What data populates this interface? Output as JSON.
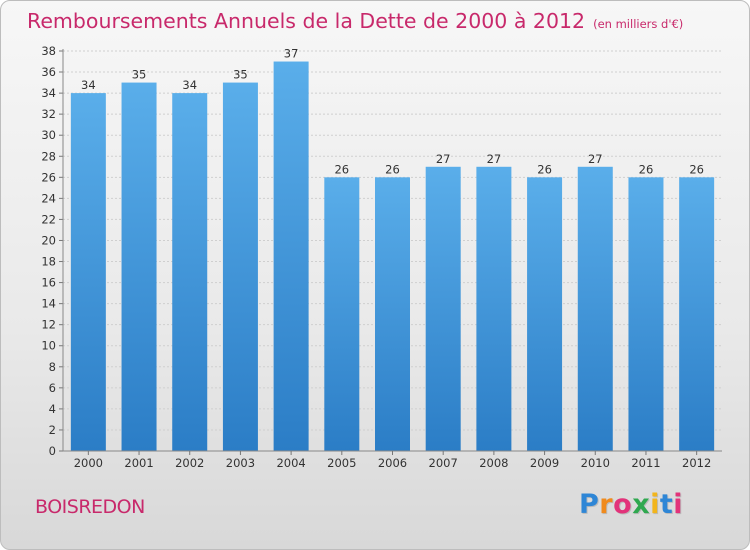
{
  "header": {
    "title": "Remboursements Annuels de la Dette de 2000 à 2012",
    "unit": "(en milliers d'€)"
  },
  "footer": {
    "commune": "BOISREDON",
    "brand": "Proxiti"
  },
  "colors": {
    "title": "#c8296b",
    "bar_top": "#5aaeea",
    "bar_bottom": "#2b7dc6"
  },
  "chart_data": {
    "type": "bar",
    "title": "Remboursements Annuels de la Dette de 2000 à 2012",
    "subtitle": "(en milliers d'€)",
    "xlabel": "",
    "ylabel": "",
    "categories": [
      "2000",
      "2001",
      "2002",
      "2003",
      "2004",
      "2005",
      "2006",
      "2007",
      "2008",
      "2009",
      "2010",
      "2011",
      "2012"
    ],
    "values": [
      34,
      35,
      34,
      35,
      37,
      26,
      26,
      27,
      27,
      26,
      27,
      26,
      26
    ],
    "ylim": [
      0,
      38
    ],
    "yticks": [
      0,
      2,
      4,
      6,
      8,
      10,
      12,
      14,
      16,
      18,
      20,
      22,
      24,
      26,
      28,
      30,
      32,
      34,
      36,
      38
    ],
    "grid": "horizontal",
    "data_labels": true
  }
}
